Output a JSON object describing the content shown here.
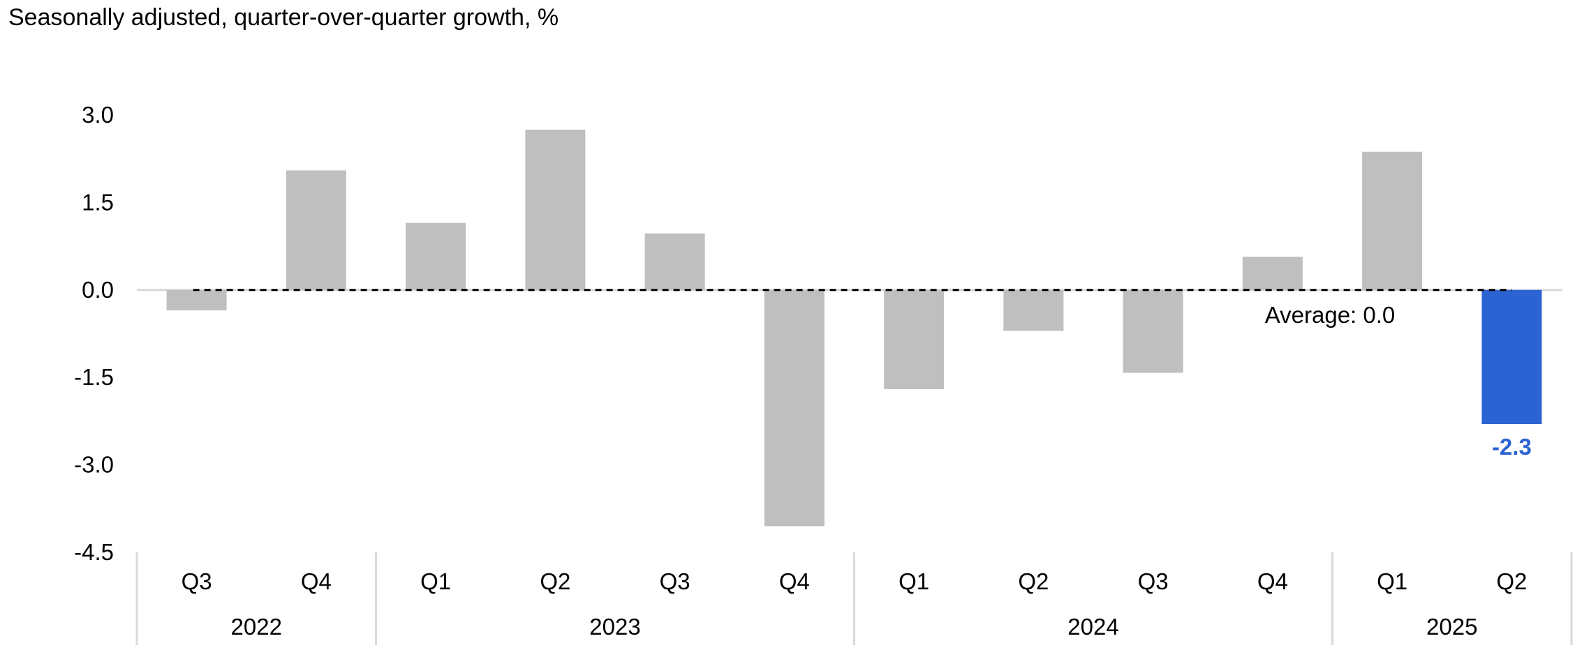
{
  "title": "Seasonally adjusted, quarter-over-quarter growth, %",
  "chart_data": {
    "type": "bar",
    "title": "Seasonally adjusted, quarter-over-quarter growth, %",
    "xlabel": "",
    "ylabel": "",
    "ylim": [
      -4.5,
      3.0
    ],
    "yticks": [
      3.0,
      1.5,
      0.0,
      -1.5,
      -3.0,
      -4.5
    ],
    "ytick_labels": [
      "3.0",
      "1.5",
      "0.0",
      "-1.5",
      "-3.0",
      "-4.5"
    ],
    "categories": [
      "Q3",
      "Q4",
      "Q1",
      "Q2",
      "Q3",
      "Q4",
      "Q1",
      "Q2",
      "Q3",
      "Q4",
      "Q1",
      "Q2"
    ],
    "years": [
      {
        "label": "2022",
        "count": 2
      },
      {
        "label": "2023",
        "count": 4
      },
      {
        "label": "2024",
        "count": 4
      },
      {
        "label": "2025",
        "count": 2
      }
    ],
    "values": [
      -0.35,
      2.05,
      1.15,
      2.75,
      0.97,
      -4.05,
      -1.7,
      -0.7,
      -1.42,
      0.57,
      2.37,
      -2.3
    ],
    "highlight_index": 11,
    "highlight_label": "-2.3",
    "average": 0.0,
    "average_label": "Average: 0.0",
    "bar_color": "#bfbfbf",
    "highlight_color": "#2b63d2",
    "grid": false,
    "legend": "none"
  }
}
